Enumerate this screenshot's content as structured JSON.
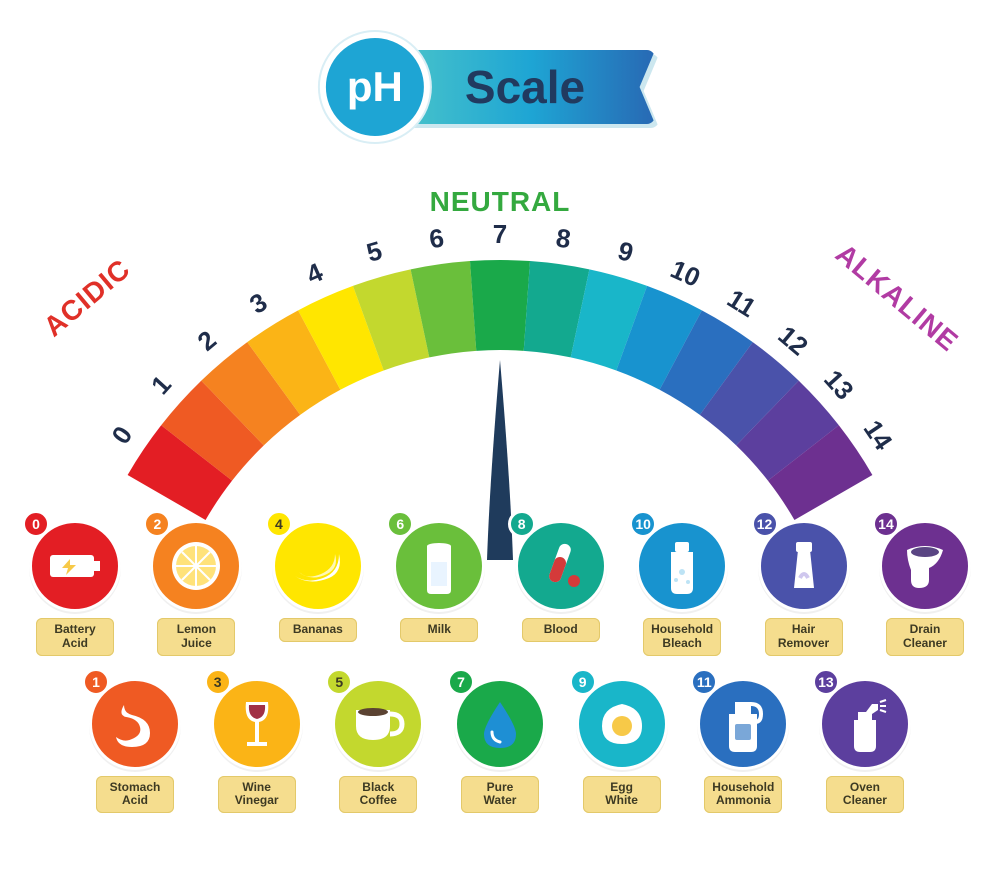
{
  "title": {
    "circle_text": "pH",
    "main_text": "Scale",
    "circle_bg": "#1ea5d4",
    "bar_gradient": [
      "#5ad0c6",
      "#1ea5d4",
      "#2869b4"
    ],
    "main_text_color": "#213a5f"
  },
  "gauge": {
    "type": "radial-gauge",
    "labels": {
      "acidic": {
        "text": "ACIDIC",
        "color": "#e03028"
      },
      "neutral": {
        "text": "NEUTRAL",
        "color": "#34a93f"
      },
      "alkaline": {
        "text": "ALKALINE",
        "color": "#b13ba3"
      }
    },
    "ticks": [
      "0",
      "1",
      "2",
      "3",
      "4",
      "5",
      "6",
      "7",
      "8",
      "9",
      "10",
      "11",
      "12",
      "13",
      "14"
    ],
    "tick_fontsize": 26,
    "tick_color": "#1f2d4a",
    "needle_value": 7,
    "needle_color": "#1f3b5c",
    "segment_colors": [
      "#e31e24",
      "#ef5a23",
      "#f58220",
      "#fbb416",
      "#ffe600",
      "#c3d82e",
      "#6abf3b",
      "#1aa94a",
      "#13a98f",
      "#19b6c9",
      "#1893cf",
      "#2a6fbf",
      "#4a52aa",
      "#5c3f9e",
      "#6d3090"
    ],
    "angle_span_deg": 120,
    "inner_radius": 340,
    "outer_radius": 430
  },
  "examples": {
    "label_bg": "#f5dd8e",
    "label_text_color": "#3d3a23",
    "row1": [
      {
        "ph": "0",
        "label": "Battery\nAcid",
        "color": "#e31e24",
        "icon": "battery",
        "badge_text": "#ffffff"
      },
      {
        "ph": "2",
        "label": "Lemon\nJuice",
        "color": "#f58220",
        "icon": "lemon",
        "badge_text": "#ffffff"
      },
      {
        "ph": "4",
        "label": "Bananas",
        "color": "#ffe600",
        "icon": "banana",
        "badge_text": "#3d3a23"
      },
      {
        "ph": "6",
        "label": "Milk",
        "color": "#6abf3b",
        "icon": "milk",
        "badge_text": "#ffffff"
      },
      {
        "ph": "8",
        "label": "Blood",
        "color": "#13a98f",
        "icon": "blood",
        "badge_text": "#ffffff"
      },
      {
        "ph": "10",
        "label": "Household\nBleach",
        "color": "#1893cf",
        "icon": "bleach",
        "badge_text": "#ffffff"
      },
      {
        "ph": "12",
        "label": "Hair\nRemover",
        "color": "#4a52aa",
        "icon": "tube",
        "badge_text": "#ffffff"
      },
      {
        "ph": "14",
        "label": "Drain\nCleaner",
        "color": "#6d3090",
        "icon": "drain",
        "badge_text": "#ffffff"
      }
    ],
    "row2": [
      {
        "ph": "1",
        "label": "Stomach\nAcid",
        "color": "#ef5a23",
        "icon": "stomach",
        "badge_text": "#ffffff"
      },
      {
        "ph": "3",
        "label": "Wine\nVinegar",
        "color": "#fbb416",
        "icon": "wine",
        "badge_text": "#3d3a23"
      },
      {
        "ph": "5",
        "label": "Black\nCoffee",
        "color": "#c3d82e",
        "icon": "coffee",
        "badge_text": "#3d3a23"
      },
      {
        "ph": "7",
        "label": "Pure\nWater",
        "color": "#1aa94a",
        "icon": "drop",
        "badge_text": "#ffffff"
      },
      {
        "ph": "9",
        "label": "Egg\nWhite",
        "color": "#19b6c9",
        "icon": "egg",
        "badge_text": "#ffffff"
      },
      {
        "ph": "11",
        "label": "Household\nAmmonia",
        "color": "#2a6fbf",
        "icon": "jug",
        "badge_text": "#ffffff"
      },
      {
        "ph": "13",
        "label": "Oven\nCleaner",
        "color": "#5c3f9e",
        "icon": "spray",
        "badge_text": "#ffffff"
      }
    ]
  },
  "background_color": "#ffffff"
}
